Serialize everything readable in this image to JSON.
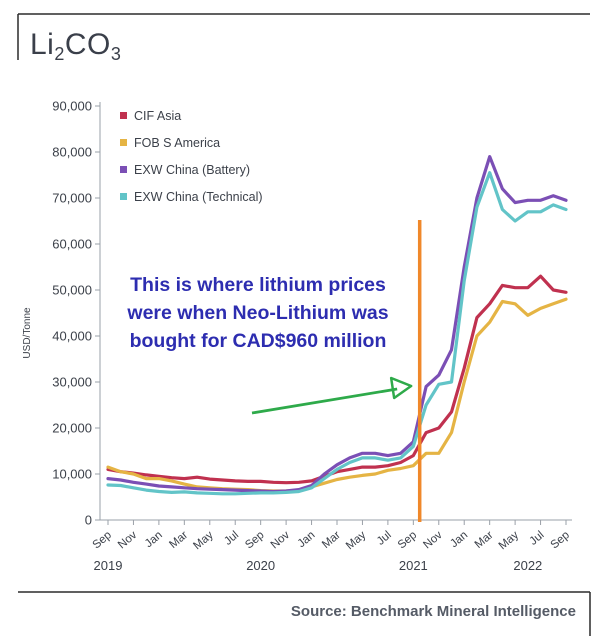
{
  "chart_data": {
    "type": "line",
    "title": "Li2CO3",
    "title_parts": {
      "base": "Li",
      "sub1": "2",
      "mid": "CO",
      "sub2": "3"
    },
    "ylabel": "USD/Tonne",
    "ylim": [
      0,
      90000
    ],
    "yticks": [
      "0",
      "10,000",
      "20,000",
      "30,000",
      "40,000",
      "50,000",
      "60,000",
      "70,000",
      "80,000",
      "90,000"
    ],
    "grid": false,
    "legend_position": "top-left",
    "x_tick_labels": [
      "Sep",
      "Nov",
      "Jan",
      "Mar",
      "May",
      "Jul",
      "Sep",
      "Nov",
      "Jan",
      "Mar",
      "May",
      "Jul",
      "Sep",
      "Nov",
      "Jan",
      "Mar",
      "May",
      "Jul",
      "Sep"
    ],
    "x_year_labels": [
      {
        "label": "2019",
        "tick_index": 0
      },
      {
        "label": "2020",
        "tick_index": 6
      },
      {
        "label": "2021",
        "tick_index": 12
      },
      {
        "label": "2022",
        "tick_index": 16.5
      }
    ],
    "series": [
      {
        "name": "CIF Asia",
        "color": "#c0314f",
        "values": [
          11000,
          10500,
          10200,
          9800,
          9500,
          9200,
          9000,
          9300,
          8900,
          8700,
          8500,
          8400,
          8400,
          8200,
          8100,
          8200,
          8500,
          9500,
          10500,
          11000,
          11500,
          11500,
          11800,
          12500,
          14000,
          19000,
          20000,
          23500,
          33000,
          44000,
          47000,
          51000,
          50500,
          50500,
          53000,
          50000,
          49500
        ]
      },
      {
        "name": "FOB S America",
        "color": "#e5b444",
        "values": [
          11500,
          10500,
          10000,
          9000,
          9000,
          8500,
          7800,
          7200,
          7000,
          6800,
          6700,
          6600,
          6400,
          6300,
          6300,
          6500,
          7200,
          8000,
          8800,
          9300,
          9700,
          10000,
          10800,
          11200,
          11800,
          14500,
          14500,
          19000,
          30000,
          40000,
          43000,
          47500,
          47000,
          44500,
          46000,
          47000,
          48000
        ]
      },
      {
        "name": "EXW China (Battery)",
        "color": "#7b4fb5",
        "values": [
          9000,
          8700,
          8200,
          7800,
          7400,
          7200,
          7000,
          6800,
          6700,
          6600,
          6500,
          6400,
          6300,
          6200,
          6300,
          6600,
          7500,
          10000,
          12000,
          13500,
          14500,
          14500,
          14000,
          14500,
          17000,
          29000,
          31500,
          37000,
          55000,
          70000,
          79000,
          72000,
          69000,
          69500,
          69500,
          70500,
          69500
        ]
      },
      {
        "name": "EXW China (Technical)",
        "color": "#62c4c8",
        "values": [
          7600,
          7500,
          7000,
          6500,
          6200,
          6000,
          6100,
          5900,
          5800,
          5700,
          5700,
          5800,
          5900,
          5900,
          6000,
          6200,
          7000,
          9000,
          11000,
          12500,
          13500,
          13500,
          13000,
          13500,
          16000,
          25000,
          29500,
          30000,
          52000,
          68000,
          75500,
          67500,
          65000,
          67000,
          67000,
          68500,
          67500
        ]
      }
    ],
    "annotations": [
      {
        "text": "This is where lithium prices were when Neo-Lithium was bought for CAD$960 million",
        "lines": [
          "This is where lithium prices",
          "were when Neo-Lithium was",
          "bought for CAD$960 million"
        ],
        "color": "#2d2db0"
      }
    ],
    "reference_line": {
      "x_month_index": 24.5,
      "color": "#f0882a"
    },
    "arrow": {
      "color": "#2eaa4a",
      "target_month_index": 24.3,
      "target_value": 30000
    }
  },
  "source": "Source: Benchmark Mineral Intelligence"
}
